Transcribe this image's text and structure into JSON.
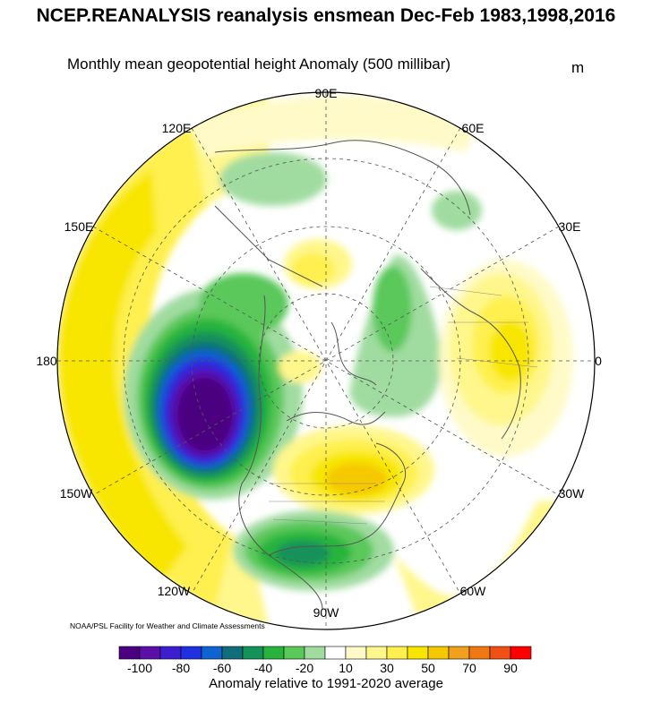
{
  "title": "NCEP.REANALYSIS reanalysis ensmean Dec-Feb 1983,1998,2016",
  "subtitle": "Monthly mean geopotential height Anomaly (500 millibar)",
  "units": "m",
  "credit": "NOAA/PSL Facility for Weather and Climate Assessments",
  "colorbar": {
    "caption": "Anomaly relative to 1991-2020 average",
    "colors": [
      "#4b0080",
      "#5a10a8",
      "#3c1ed0",
      "#2030e0",
      "#1064d2",
      "#106e7a",
      "#15915a",
      "#28b43c",
      "#5ac85a",
      "#a0dca0",
      "#ffffff",
      "#fffac8",
      "#fff78c",
      "#fff050",
      "#f8e600",
      "#f5c800",
      "#f0a01e",
      "#f07814",
      "#f05014",
      "#ff0000"
    ],
    "labels": [
      "-100",
      "-80",
      "-60",
      "-40",
      "-20",
      "10",
      "30",
      "50",
      "70",
      "90"
    ]
  },
  "map": {
    "projection": "north-polar-stereographic",
    "longitude_labels": [
      "90E",
      "60E",
      "30E",
      "0",
      "30W",
      "60W",
      "90W",
      "120W",
      "150W",
      "180",
      "150E",
      "120E"
    ]
  }
}
